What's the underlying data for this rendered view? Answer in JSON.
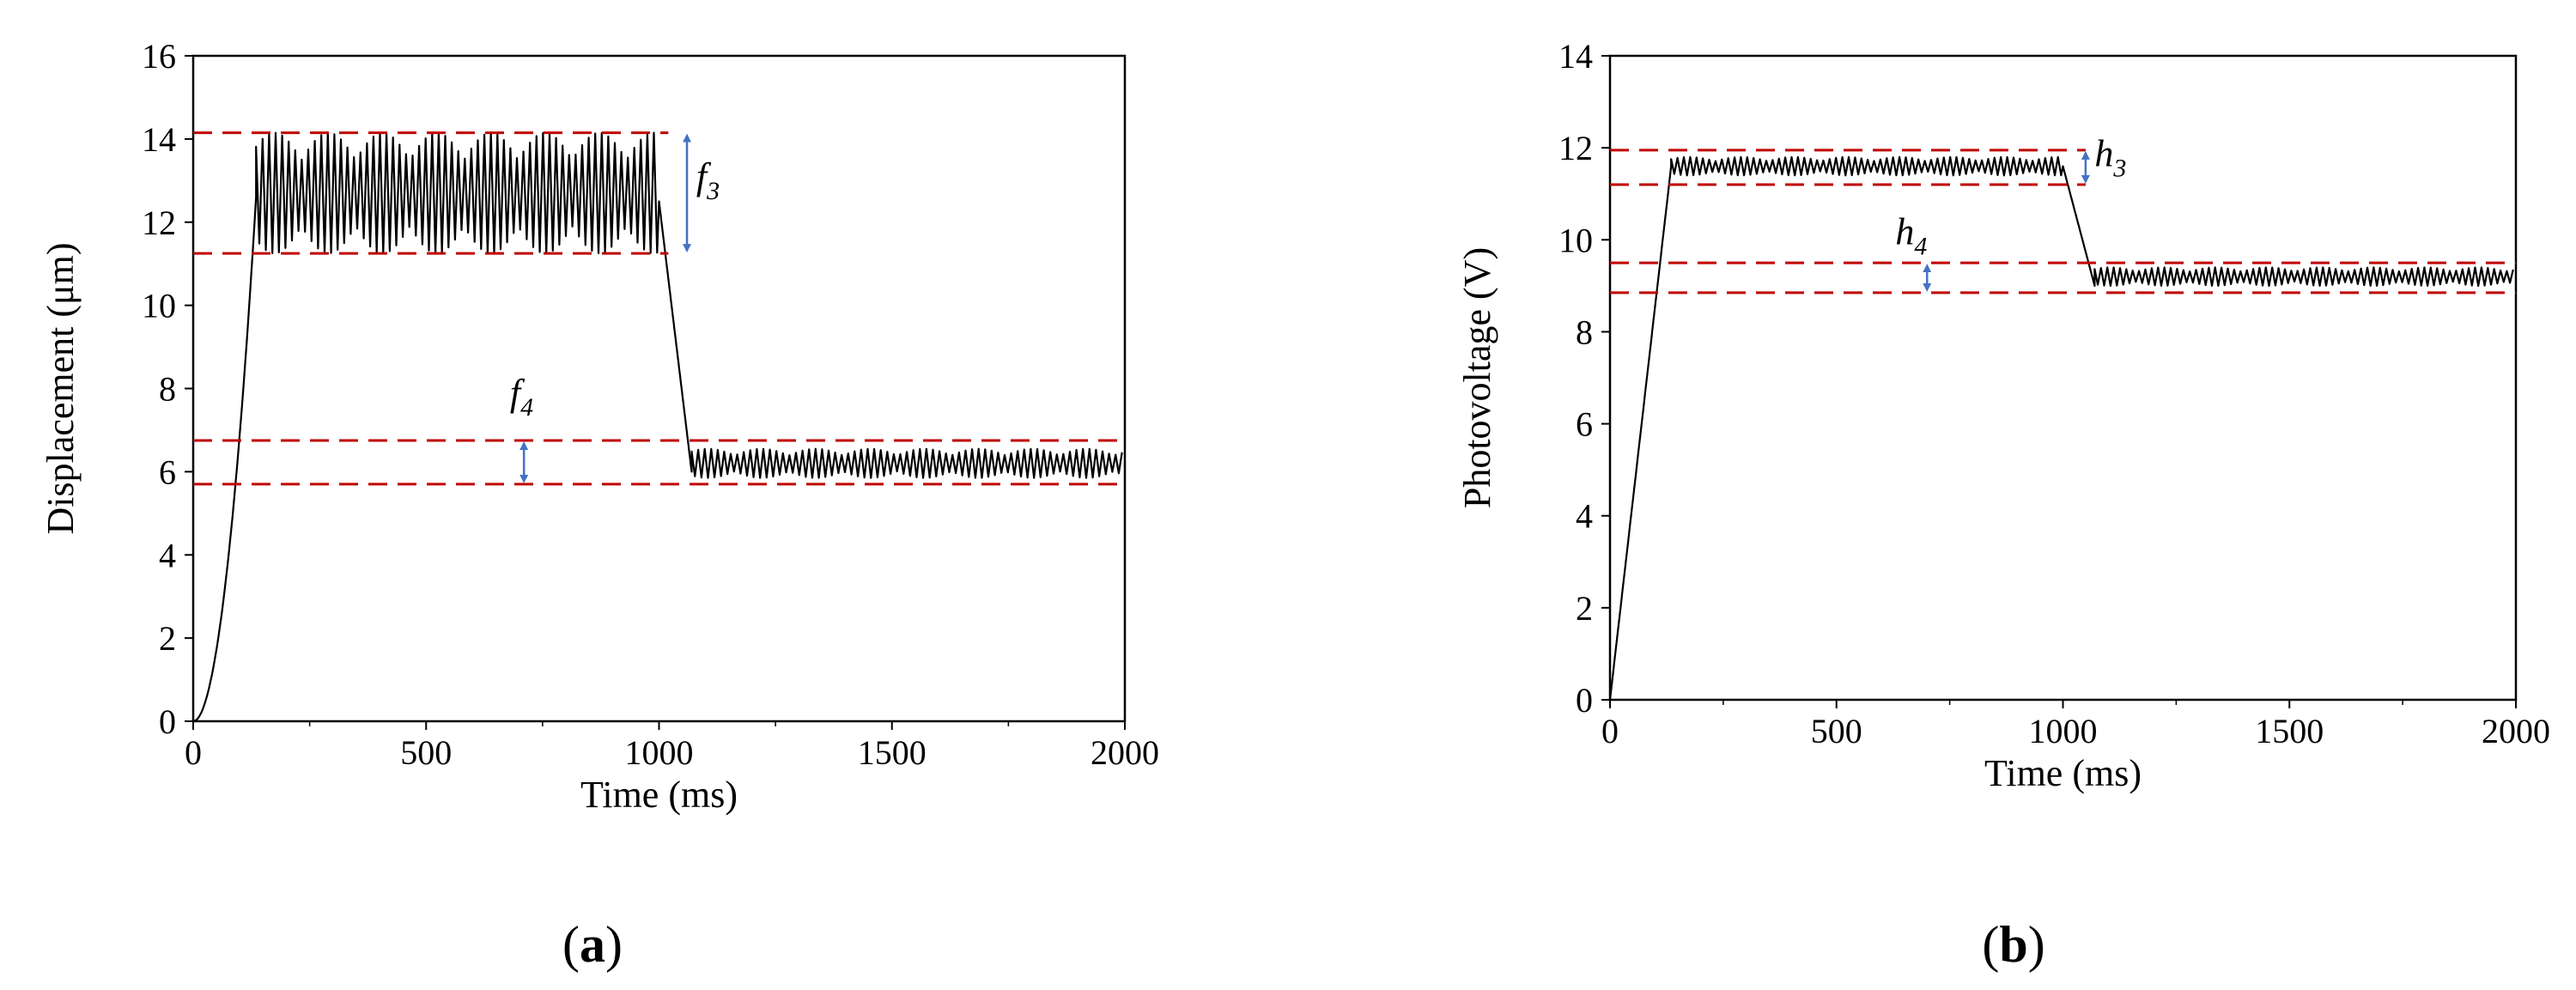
{
  "chart_data": [
    {
      "type": "line",
      "panel_label": "(a)",
      "panel_letter": "a",
      "xlabel": "Time (ms)",
      "ylabel": "Displacement (μm)",
      "xlim": [
        0,
        2000
      ],
      "ylim": [
        0,
        16
      ],
      "xticks": [
        0,
        500,
        1000,
        1500,
        2000
      ],
      "yticks": [
        0,
        2,
        4,
        6,
        8,
        10,
        12,
        14,
        16
      ],
      "grid": false,
      "series": [
        {
          "color": "#000000",
          "segments": [
            {
              "kind": "rise",
              "x0": 0,
              "x1": 135,
              "y0": 0,
              "y1": 12.6,
              "shape": "convex"
            },
            {
              "kind": "oscillation",
              "x0": 135,
              "x1": 1000,
              "center": 12.7,
              "amplitude": 1.45,
              "period_ms": 14
            },
            {
              "kind": "fall",
              "x0": 1000,
              "x1": 1070,
              "y0": 12.5,
              "y1": 6.0
            },
            {
              "kind": "oscillation",
              "x0": 1070,
              "x1": 2000,
              "center": 6.2,
              "amplitude": 0.35,
              "period_ms": 14
            }
          ]
        }
      ],
      "reference_lines": [
        {
          "y": 14.15,
          "x0": 0,
          "x1": 1020,
          "color": "#c00000"
        },
        {
          "y": 11.25,
          "x0": 0,
          "x1": 1020,
          "color": "#c00000"
        },
        {
          "y": 6.75,
          "x0": 0,
          "x1": 2000,
          "color": "#c00000"
        },
        {
          "y": 5.7,
          "x0": 0,
          "x1": 2000,
          "color": "#c00000"
        }
      ],
      "annotations": [
        {
          "base": "f",
          "sub": "3",
          "x": 1080,
          "y": 12.8,
          "arrow_x": 1060,
          "arrow_y0": 11.25,
          "arrow_y1": 14.15
        },
        {
          "base": "f",
          "sub": "4",
          "x": 680,
          "y": 7.6,
          "arrow_x": 710,
          "arrow_y0": 5.7,
          "arrow_y1": 6.75
        }
      ]
    },
    {
      "type": "line",
      "panel_label": "(b)",
      "panel_letter": "b",
      "xlabel": "Time (ms)",
      "ylabel": "Photovoltage (V)",
      "xlim": [
        0,
        2000
      ],
      "ylim": [
        0,
        14
      ],
      "xticks": [
        0,
        500,
        1000,
        1500,
        2000
      ],
      "yticks": [
        0,
        2,
        4,
        6,
        8,
        10,
        12,
        14
      ],
      "grid": false,
      "series": [
        {
          "color": "#000000",
          "segments": [
            {
              "kind": "rise",
              "x0": 0,
              "x1": 135,
              "y0": 0,
              "y1": 11.6,
              "shape": "linear"
            },
            {
              "kind": "oscillation",
              "x0": 135,
              "x1": 1000,
              "center": 11.6,
              "amplitude": 0.2,
              "period_ms": 14
            },
            {
              "kind": "fall",
              "x0": 1000,
              "x1": 1070,
              "y0": 11.6,
              "y1": 9.0
            },
            {
              "kind": "oscillation",
              "x0": 1070,
              "x1": 2000,
              "center": 9.2,
              "amplitude": 0.2,
              "period_ms": 14
            }
          ]
        }
      ],
      "reference_lines": [
        {
          "y": 11.95,
          "x0": 0,
          "x1": 1050,
          "color": "#c00000"
        },
        {
          "y": 11.2,
          "x0": 0,
          "x1": 1050,
          "color": "#c00000"
        },
        {
          "y": 9.5,
          "x0": 0,
          "x1": 2000,
          "color": "#c00000"
        },
        {
          "y": 8.85,
          "x0": 0,
          "x1": 2000,
          "color": "#c00000"
        }
      ],
      "annotations": [
        {
          "base": "h",
          "sub": "3",
          "x": 1070,
          "y": 11.6,
          "arrow_x": 1050,
          "arrow_y0": 11.2,
          "arrow_y1": 11.95
        },
        {
          "base": "h",
          "sub": "4",
          "x": 630,
          "y": 9.9,
          "arrow_x": 700,
          "arrow_y0": 8.85,
          "arrow_y1": 9.5
        }
      ]
    }
  ]
}
